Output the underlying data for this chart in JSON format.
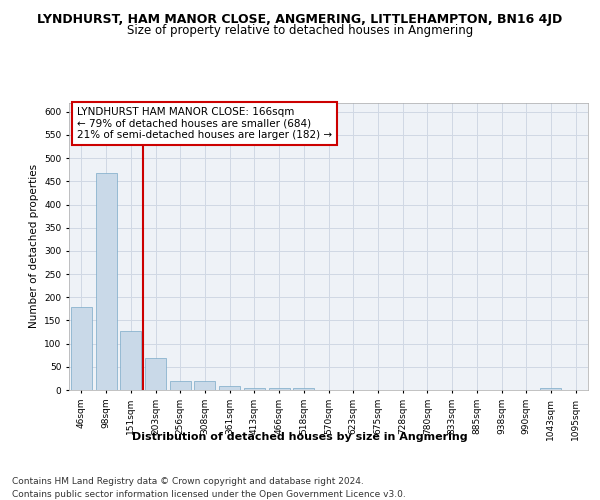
{
  "title": "LYNDHURST, HAM MANOR CLOSE, ANGMERING, LITTLEHAMPTON, BN16 4JD",
  "subtitle": "Size of property relative to detached houses in Angmering",
  "xlabel": "Distribution of detached houses by size in Angmering",
  "ylabel": "Number of detached properties",
  "categories": [
    "46sqm",
    "98sqm",
    "151sqm",
    "203sqm",
    "256sqm",
    "308sqm",
    "361sqm",
    "413sqm",
    "466sqm",
    "518sqm",
    "570sqm",
    "623sqm",
    "675sqm",
    "728sqm",
    "780sqm",
    "833sqm",
    "885sqm",
    "938sqm",
    "990sqm",
    "1043sqm",
    "1095sqm"
  ],
  "values": [
    178,
    468,
    127,
    70,
    20,
    20,
    8,
    5,
    5,
    5,
    0,
    0,
    0,
    0,
    0,
    0,
    0,
    0,
    0,
    5,
    0
  ],
  "bar_color": "#c9d9e8",
  "bar_edge_color": "#7aaac8",
  "red_line_index": 2,
  "red_line_color": "#cc0000",
  "ylim": [
    0,
    620
  ],
  "yticks": [
    0,
    50,
    100,
    150,
    200,
    250,
    300,
    350,
    400,
    450,
    500,
    550,
    600
  ],
  "annotation_title": "LYNDHURST HAM MANOR CLOSE: 166sqm",
  "annotation_line1": "← 79% of detached houses are smaller (684)",
  "annotation_line2": "21% of semi-detached houses are larger (182) →",
  "annotation_box_color": "#cc0000",
  "grid_color": "#d0d8e4",
  "bg_color": "#eef2f7",
  "footer_line1": "Contains HM Land Registry data © Crown copyright and database right 2024.",
  "footer_line2": "Contains public sector information licensed under the Open Government Licence v3.0.",
  "title_fontsize": 9,
  "subtitle_fontsize": 8.5,
  "xlabel_fontsize": 8,
  "ylabel_fontsize": 7.5,
  "tick_fontsize": 6.5,
  "annotation_fontsize": 7.5,
  "footer_fontsize": 6.5
}
